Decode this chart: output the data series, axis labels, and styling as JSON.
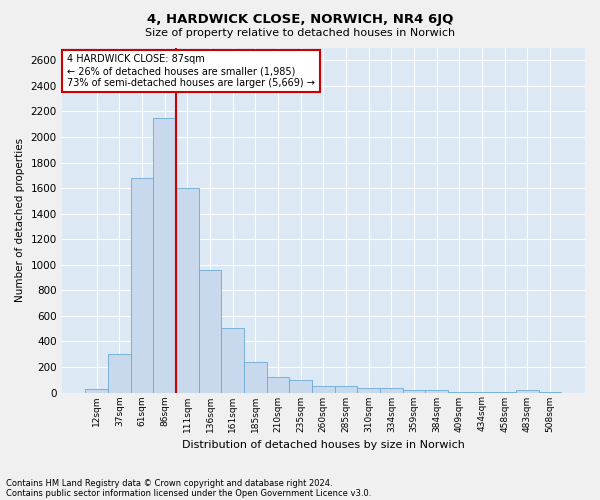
{
  "title": "4, HARDWICK CLOSE, NORWICH, NR4 6JQ",
  "subtitle": "Size of property relative to detached houses in Norwich",
  "xlabel": "Distribution of detached houses by size in Norwich",
  "ylabel": "Number of detached properties",
  "footnote1": "Contains HM Land Registry data © Crown copyright and database right 2024.",
  "footnote2": "Contains public sector information licensed under the Open Government Licence v3.0.",
  "annotation_line1": "4 HARDWICK CLOSE: 87sqm",
  "annotation_line2": "← 26% of detached houses are smaller (1,985)",
  "annotation_line3": "73% of semi-detached houses are larger (5,669) →",
  "bar_color": "#c8d9ed",
  "bar_edge_color": "#6aaad4",
  "vline_color": "#cc0000",
  "annotation_box_edge": "#cc0000",
  "annotation_box_face": "#ffffff",
  "categories": [
    "12sqm",
    "37sqm",
    "61sqm",
    "86sqm",
    "111sqm",
    "136sqm",
    "161sqm",
    "185sqm",
    "210sqm",
    "235sqm",
    "260sqm",
    "285sqm",
    "310sqm",
    "334sqm",
    "359sqm",
    "384sqm",
    "409sqm",
    "434sqm",
    "458sqm",
    "483sqm",
    "508sqm"
  ],
  "values": [
    25,
    300,
    1680,
    2150,
    1600,
    960,
    505,
    235,
    120,
    100,
    50,
    50,
    35,
    35,
    20,
    20,
    5,
    5,
    5,
    20,
    5
  ],
  "vline_x": 3.5,
  "ylim": [
    0,
    2700
  ],
  "yticks": [
    0,
    200,
    400,
    600,
    800,
    1000,
    1200,
    1400,
    1600,
    1800,
    2000,
    2200,
    2400,
    2600
  ],
  "bg_color": "#dce9f5",
  "grid_color": "#ffffff",
  "fig_bg_color": "#f0f0f0",
  "figsize": [
    6.0,
    5.0
  ],
  "dpi": 100
}
